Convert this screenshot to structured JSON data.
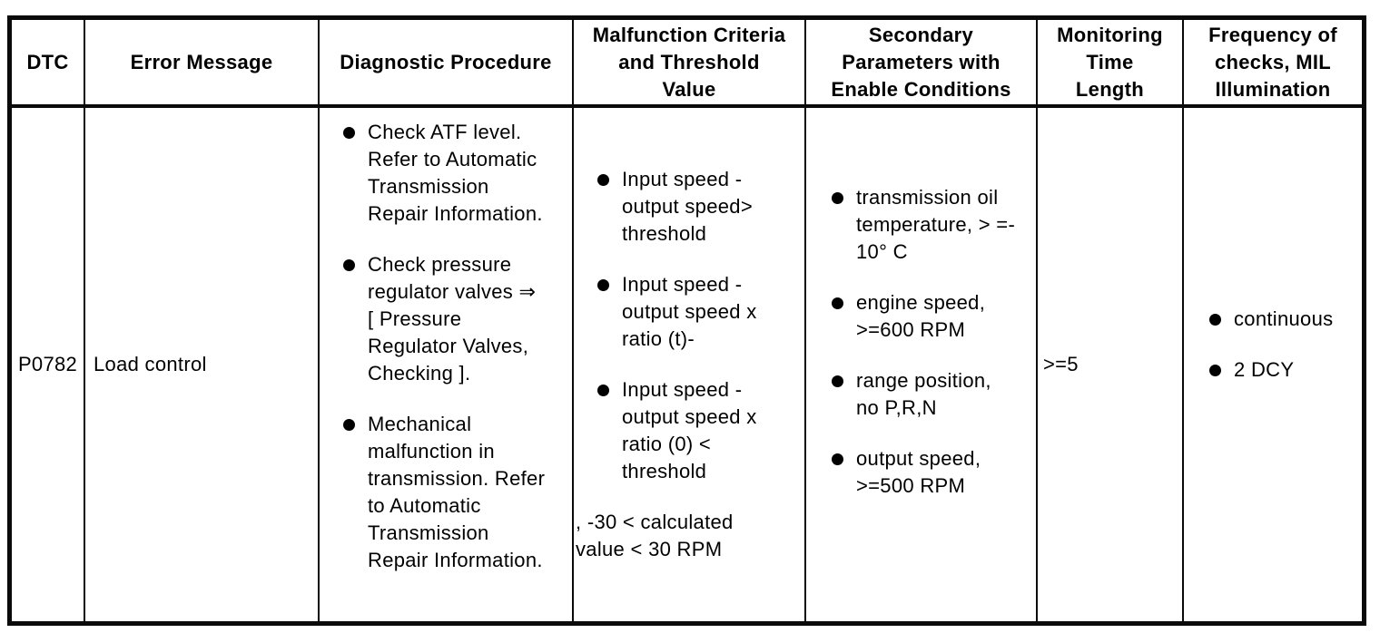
{
  "page": {
    "background_color": "#ffffff",
    "line_color": "#0a0a0a",
    "text_color": "#000000"
  },
  "table": {
    "columns": [
      {
        "key": "dtc",
        "header": "DTC"
      },
      {
        "key": "error_message",
        "header": "Error Message"
      },
      {
        "key": "diagnostic_procedure",
        "header": "Diagnostic Procedure"
      },
      {
        "key": "malfunction_criteria",
        "header": "Malfunction Criteria\nand Threshold\nValue"
      },
      {
        "key": "secondary_parameters",
        "header": "Secondary\nParameters with\nEnable Conditions"
      },
      {
        "key": "monitoring_time",
        "header": "Monitoring\nTime\nLength"
      },
      {
        "key": "frequency",
        "header": "Frequency of\nchecks, MIL\nIllumination"
      }
    ],
    "row": {
      "dtc": "P0782",
      "error_message": "Load control",
      "diagnostic_procedure": {
        "bullets": [
          "Check ATF level.\nRefer to Automatic\nTransmission\nRepair Information.",
          "Check pressure\nregulator valves ⇒\n[ Pressure\nRegulator Valves,\nChecking ].",
          "Mechanical\nmalfunction in\ntransmission. Refer\nto Automatic\nTransmission\nRepair Information."
        ]
      },
      "malfunction_criteria": {
        "bullets": [
          "Input speed -\noutput speed>\nthreshold",
          "Input speed -\noutput speed x\nratio (t)-",
          "Input speed -\noutput speed x\nratio (0) <\nthreshold"
        ],
        "note": ", -30 < calculated\nvalue < 30 RPM"
      },
      "secondary_parameters": {
        "bullets": [
          "transmission oil\ntemperature, > =-\n10° C",
          "engine speed,\n>=600 RPM",
          "range position,\nno P,R,N",
          "output speed,\n>=500 RPM"
        ]
      },
      "monitoring_time": ">=5",
      "frequency": {
        "bullets": [
          "continuous",
          "2 DCY"
        ]
      }
    }
  }
}
